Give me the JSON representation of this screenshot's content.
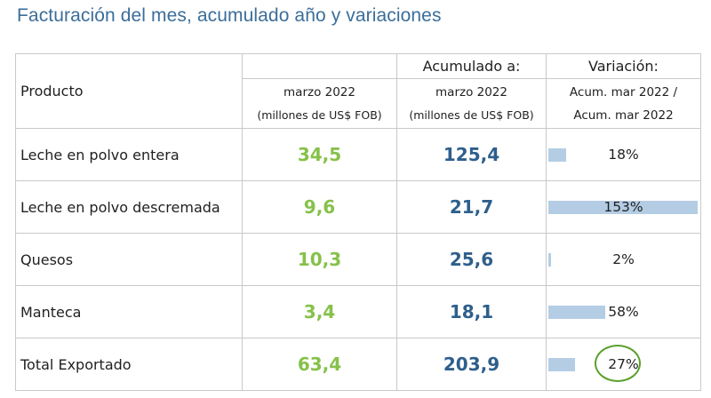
{
  "title": "Facturación del mes, acumulado año y variaciones",
  "colors": {
    "title": "#3b6e9a",
    "month_value": "#86c14a",
    "accum_value": "#2e5f8c",
    "bar": "#b4cde4",
    "highlight_ring": "#5aa02c"
  },
  "headers": {
    "producto": "Producto",
    "mes_top": "",
    "mes_line1": "marzo 2022",
    "mes_line2": "(millones de US$ FOB)",
    "acum_top": "Acumulado a:",
    "acum_line1": "marzo 2022",
    "acum_line2": "(millones de US$ FOB)",
    "var_top": "Variación:",
    "var_line1": "Acum. mar 2022 /",
    "var_line2": "Acum. mar 2022"
  },
  "rows": [
    {
      "producto": "Leche en polvo entera",
      "mes": "34,5",
      "acum": "125,4",
      "variacion": "18%",
      "variacion_pct": 18
    },
    {
      "producto": "Leche en polvo descremada",
      "mes": "9,6",
      "acum": "21,7",
      "variacion": "153%",
      "variacion_pct": 153
    },
    {
      "producto": "Quesos",
      "mes": "10,3",
      "acum": "25,6",
      "variacion": "2%",
      "variacion_pct": 2
    },
    {
      "producto": "Manteca",
      "mes": "3,4",
      "acum": "18,1",
      "variacion": "58%",
      "variacion_pct": 58
    },
    {
      "producto": "Total Exportado",
      "mes": "63,4",
      "acum": "203,9",
      "variacion": "27%",
      "variacion_pct": 27,
      "highlighted": true
    }
  ]
}
